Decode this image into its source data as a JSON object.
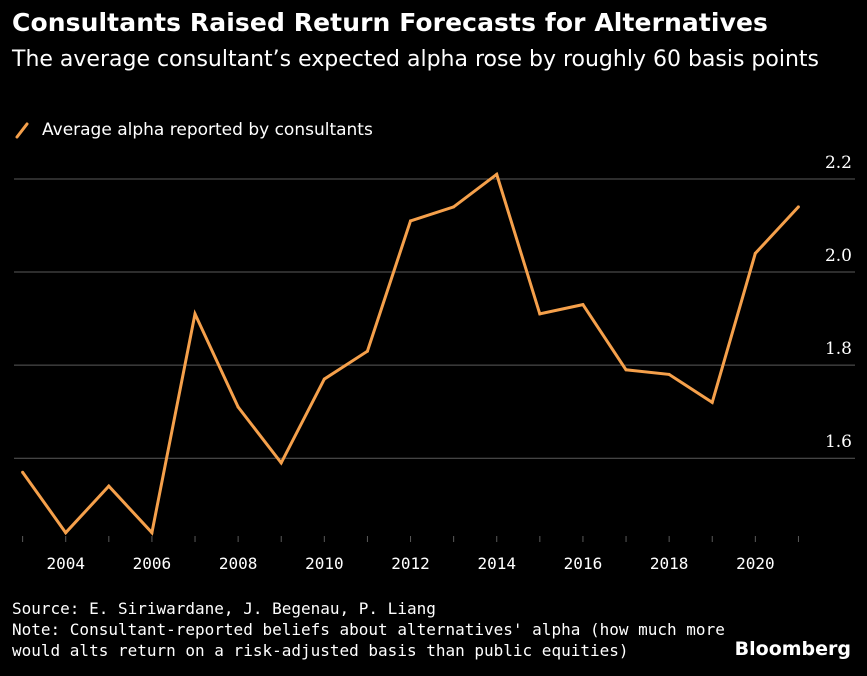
{
  "title": "Consultants Raised Return Forecasts for Alternatives",
  "subtitle": "The average consultant’s expected alpha rose by roughly 60 basis points",
  "source": "Source: E. Siriwardane, J. Begenau, P. Liang",
  "note_line1": "Note: Consultant-reported beliefs about alternatives' alpha (how much more",
  "note_line2": "would alts return on a risk-adjusted basis than public equities)",
  "brand": "Bloomberg",
  "colors": {
    "line": "#f5a04b",
    "grid": "#5a5a5a",
    "background": "#000000",
    "text": "#ffffff"
  },
  "chart_data": {
    "type": "line",
    "title": "Consultants Raised Return Forecasts for Alternatives",
    "subtitle": "The average consultant’s expected alpha rose by roughly 60 basis points",
    "legend_position": "top-left",
    "grid": "horizontal",
    "y_axis_side": "right",
    "xlim": [
      2002.8,
      2021.5
    ],
    "ylim": [
      1.42,
      2.23
    ],
    "x_ticks": [
      2004,
      2006,
      2008,
      2010,
      2012,
      2014,
      2016,
      2018,
      2020
    ],
    "y_ticks": [
      1.6,
      1.8,
      2.0,
      2.2
    ],
    "y_tick_labels": [
      "1.6",
      "1.8",
      "2.0",
      "2.2"
    ],
    "series": [
      {
        "name": "Average alpha reported by consultants",
        "x": [
          2003,
          2004,
          2005,
          2006,
          2007,
          2008,
          2009,
          2010,
          2011,
          2012,
          2013,
          2014,
          2015,
          2016,
          2017,
          2018,
          2019,
          2020,
          2021
        ],
        "values": [
          1.57,
          1.44,
          1.54,
          1.44,
          1.91,
          1.71,
          1.59,
          1.77,
          1.83,
          2.11,
          2.14,
          2.21,
          1.91,
          1.93,
          1.79,
          1.78,
          1.72,
          2.04,
          2.14
        ]
      }
    ]
  }
}
